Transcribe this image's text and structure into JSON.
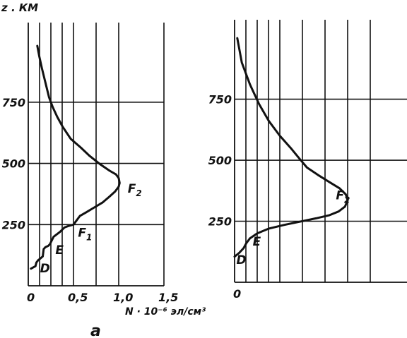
{
  "figure": {
    "y_unit": "z . КМ",
    "panel_label": "а"
  },
  "chart_data": [
    {
      "type": "line",
      "xlabel": "N · 10⁻⁶ эл/см³",
      "ylabel": "z . КМ",
      "xlim": [
        0,
        1.5
      ],
      "ylim": [
        0,
        1000
      ],
      "x_ticks": [
        0,
        0.5,
        1.0,
        1.5
      ],
      "x_tick_labels": [
        "0",
        "0,5",
        "1,0",
        "1,5"
      ],
      "y_ticks": [
        250,
        500,
        750
      ],
      "y_tick_labels": [
        "250",
        "500",
        "750"
      ],
      "grid_x": [
        0,
        0.125,
        0.25,
        0.375,
        0.5,
        0.75,
        1.0,
        1.5
      ],
      "grid_y": [
        250,
        500,
        750
      ],
      "annotations": [
        {
          "text": "D",
          "x": 0.13,
          "y": 55,
          "sub": ""
        },
        {
          "text": "E",
          "x": 0.3,
          "y": 130,
          "sub": ""
        },
        {
          "text": "F",
          "x": 0.55,
          "y": 200,
          "sub": "1"
        },
        {
          "text": "F",
          "x": 1.1,
          "y": 380,
          "sub": "2"
        }
      ],
      "series": [
        {
          "x": [
            0.03,
            0.08,
            0.09,
            0.11,
            0.13,
            0.16,
            0.17,
            0.19,
            0.22,
            0.24,
            0.28,
            0.35,
            0.4,
            0.45,
            0.5,
            0.57,
            0.64,
            0.73,
            0.82,
            0.9,
            0.96,
            1.0,
            1.01,
            1.0,
            0.97,
            0.9,
            0.8,
            0.68,
            0.58,
            0.47,
            0.38,
            0.32,
            0.27,
            0.23,
            0.19,
            0.15,
            0.12,
            0.1
          ],
          "y": [
            70,
            80,
            95,
            105,
            110,
            120,
            150,
            158,
            163,
            170,
            200,
            220,
            238,
            245,
            250,
            285,
            300,
            320,
            340,
            365,
            385,
            405,
            420,
            440,
            455,
            470,
            495,
            530,
            565,
            600,
            650,
            690,
            730,
            770,
            830,
            890,
            940,
            980
          ]
        }
      ]
    },
    {
      "type": "line",
      "xlabel": "",
      "ylabel": "",
      "xlim": [
        0,
        1.5
      ],
      "ylim": [
        0,
        1000
      ],
      "x_ticks": [
        0
      ],
      "x_tick_labels": [
        "0"
      ],
      "y_ticks": [
        250,
        500,
        750
      ],
      "y_tick_labels": [
        "250",
        "500",
        "750"
      ],
      "grid_x": [
        0,
        0.125,
        0.25,
        0.375,
        0.5,
        0.75,
        1.0,
        1.25,
        1.5
      ],
      "grid_y": [
        250,
        500,
        750
      ],
      "annotations": [
        {
          "text": "D",
          "x": 0.02,
          "y": 75,
          "sub": ""
        },
        {
          "text": "E",
          "x": 0.2,
          "y": 150,
          "sub": ""
        },
        {
          "text": "F",
          "x": 1.12,
          "y": 340,
          "sub": "2"
        }
      ],
      "series": [
        {
          "x": [
            0.0,
            0.05,
            0.1,
            0.13,
            0.17,
            0.25,
            0.38,
            0.55,
            0.72,
            0.9,
            1.05,
            1.15,
            1.22,
            1.25,
            1.23,
            1.16,
            1.05,
            0.92,
            0.8,
            0.72,
            0.62,
            0.5,
            0.38,
            0.27,
            0.17,
            0.08,
            0.03
          ],
          "y": [
            105,
            120,
            140,
            160,
            180,
            200,
            220,
            235,
            248,
            262,
            275,
            290,
            310,
            335,
            360,
            385,
            410,
            440,
            470,
            505,
            550,
            600,
            660,
            730,
            810,
            900,
            1000
          ]
        }
      ]
    }
  ]
}
